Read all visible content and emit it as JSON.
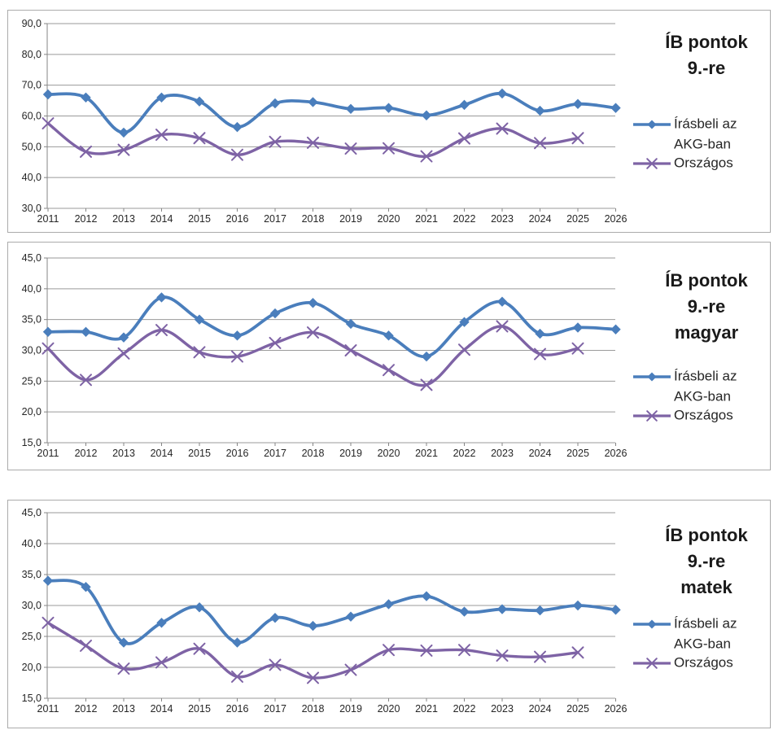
{
  "page": {
    "background_color": "#ffffff",
    "description_colors": {
      "series1_blue": "#4a7ebc",
      "series2_purple": "#7e63a5",
      "gridline_gray": "#9a9a9a",
      "axis_gray": "#858585",
      "label_text": "#262626",
      "title_text": "#1a1a1a",
      "box_border": "#ababab"
    }
  },
  "chart_data": [
    {
      "type": "line",
      "title": "ÍB pontok 9.-re",
      "title_lines": [
        "ÍB pontok",
        "9.-re"
      ],
      "categories": [
        "2011",
        "2012",
        "2013",
        "2014",
        "2015",
        "2016",
        "2017",
        "2018",
        "2019",
        "2020",
        "2021",
        "2022",
        "2023",
        "2024",
        "2025",
        "2026"
      ],
      "xlabel": "",
      "ylabel": "",
      "ylim": [
        30,
        90
      ],
      "ytick_step": 10,
      "ytick_labels": [
        "30,0",
        "40,0",
        "50,0",
        "60,0",
        "70,0",
        "80,0",
        "90,0"
      ],
      "grid": true,
      "legend_position": "right",
      "series": [
        {
          "name": "Írásbeli az AKG-ban",
          "legend_lines": [
            "Írásbeli az",
            "AKG-ban"
          ],
          "color": "#4a7ebc",
          "marker": "diamond",
          "smooth": true,
          "values": [
            67.0,
            66.0,
            54.6,
            66.0,
            64.7,
            56.4,
            64.1,
            64.5,
            62.3,
            62.6,
            60.2,
            63.6,
            67.3,
            61.7,
            63.9,
            62.6
          ]
        },
        {
          "name": "Országos",
          "legend_lines": [
            "Országos"
          ],
          "color": "#7e63a5",
          "marker": "x",
          "smooth": true,
          "values": [
            57.6,
            48.4,
            49.0,
            53.9,
            52.8,
            47.4,
            51.6,
            51.3,
            49.4,
            49.5,
            46.9,
            52.7,
            55.9,
            51.2,
            52.8,
            null
          ]
        }
      ]
    },
    {
      "type": "line",
      "title": "ÍB pontok 9.-re magyar",
      "title_lines": [
        "ÍB pontok",
        "9.-re",
        "magyar"
      ],
      "categories": [
        "2011",
        "2012",
        "2013",
        "2014",
        "2015",
        "2016",
        "2017",
        "2018",
        "2019",
        "2020",
        "2021",
        "2022",
        "2023",
        "2024",
        "2025",
        "2026"
      ],
      "xlabel": "",
      "ylabel": "",
      "ylim": [
        15,
        45
      ],
      "ytick_step": 5,
      "ytick_labels": [
        "15,0",
        "20,0",
        "25,0",
        "30,0",
        "35,0",
        "40,0",
        "45,0"
      ],
      "grid": true,
      "legend_position": "right",
      "series": [
        {
          "name": "Írásbeli az AKG-ban",
          "legend_lines": [
            "Írásbeli az",
            "AKG-ban"
          ],
          "color": "#4a7ebc",
          "marker": "diamond",
          "smooth": true,
          "values": [
            33.0,
            33.0,
            32.1,
            38.6,
            35.0,
            32.4,
            36.0,
            37.7,
            34.3,
            32.4,
            29.0,
            34.6,
            37.9,
            32.7,
            33.7,
            33.4
          ]
        },
        {
          "name": "Országos",
          "legend_lines": [
            "Országos"
          ],
          "color": "#7e63a5",
          "marker": "x",
          "smooth": true,
          "values": [
            30.3,
            25.2,
            29.5,
            33.3,
            29.7,
            29.0,
            31.2,
            32.9,
            30.0,
            26.8,
            24.4,
            30.1,
            33.9,
            29.4,
            30.3,
            null
          ]
        }
      ]
    },
    {
      "type": "line",
      "title": "ÍB pontok 9.-re matek",
      "title_lines": [
        "ÍB pontok",
        "9.-re",
        "matek"
      ],
      "categories": [
        "2011",
        "2012",
        "2013",
        "2014",
        "2015",
        "2016",
        "2017",
        "2018",
        "2019",
        "2020",
        "2021",
        "2022",
        "2023",
        "2024",
        "2025",
        "2026"
      ],
      "xlabel": "",
      "ylabel": "",
      "ylim": [
        15,
        45
      ],
      "ytick_step": 5,
      "ytick_labels": [
        "15,0",
        "20,0",
        "25,0",
        "30,0",
        "35,0",
        "40,0",
        "45,0"
      ],
      "grid": true,
      "legend_position": "right",
      "series": [
        {
          "name": "Írásbeli az AKG-ban",
          "legend_lines": [
            "Írásbeli az",
            "AKG-ban"
          ],
          "color": "#4a7ebc",
          "marker": "diamond",
          "smooth": true,
          "values": [
            34.0,
            33.0,
            24.0,
            27.2,
            29.7,
            24.0,
            28.0,
            26.7,
            28.2,
            30.2,
            31.5,
            29.0,
            29.4,
            29.2,
            30.0,
            29.3
          ]
        },
        {
          "name": "Országos",
          "legend_lines": [
            "Országos"
          ],
          "color": "#7e63a5",
          "marker": "x",
          "smooth": true,
          "values": [
            27.2,
            23.5,
            19.8,
            20.8,
            23.0,
            18.5,
            20.4,
            18.3,
            19.6,
            22.8,
            22.7,
            22.8,
            21.9,
            21.7,
            22.4,
            null
          ]
        }
      ]
    }
  ]
}
